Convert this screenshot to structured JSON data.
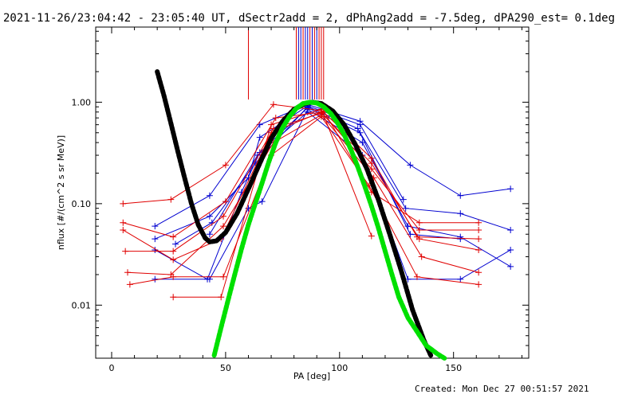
{
  "header": {
    "title": "2021-11-26/23:04:42 - 23:05:40 UT, dSectr2add = 2, dPhAng2add = -7.5deg, dPA290_est=  0.1deg"
  },
  "footer": {
    "created": "Created: Mon Dec 27 00:51:57 2021"
  },
  "colors": {
    "red": "#e00000",
    "blue": "#0000d0",
    "black": "#000000",
    "green": "#00e000"
  },
  "chart_data": {
    "type": "scatter",
    "xlabel": "PA [deg]",
    "ylabel": "nflux [#/(cm^2 s sr MeV)]",
    "xlim": [
      -7,
      183
    ],
    "ylim": [
      0.003,
      5.5
    ],
    "yscale": "log",
    "grid": false,
    "x_ticks": [
      0,
      50,
      100,
      150
    ],
    "y_ticks": [
      1.0,
      0.1,
      0.01
    ],
    "x_tick_labels": [
      "0",
      "50",
      "100",
      "150"
    ],
    "y_tick_labels": [
      "1.00",
      "0.10",
      "0.01"
    ],
    "top_markers": {
      "red": [
        60,
        81,
        84,
        87,
        89,
        91,
        92,
        93
      ],
      "blue": [
        82,
        83,
        85,
        86,
        88,
        90
      ]
    },
    "series": [
      {
        "color": "blue",
        "points": [
          [
            19,
            0.06
          ],
          [
            43,
            0.12
          ],
          [
            65,
            0.6
          ],
          [
            86,
            0.95
          ],
          [
            109,
            0.65
          ],
          [
            131,
            0.24
          ],
          [
            153,
            0.12
          ],
          [
            175,
            0.14
          ]
        ]
      },
      {
        "color": "blue",
        "points": [
          [
            19,
            0.045
          ],
          [
            43,
            0.075
          ],
          [
            60,
            0.18
          ],
          [
            65,
            0.45
          ],
          [
            86,
            0.92
          ],
          [
            109,
            0.6
          ],
          [
            128,
            0.11
          ]
        ]
      },
      {
        "color": "blue",
        "points": [
          [
            19,
            0.035
          ],
          [
            42,
            0.018
          ],
          [
            57,
            0.13
          ],
          [
            65,
            0.32
          ],
          [
            86,
            0.88
          ],
          [
            109,
            0.5
          ],
          [
            129,
            0.09
          ],
          [
            153,
            0.08
          ],
          [
            175,
            0.055
          ]
        ]
      },
      {
        "color": "blue",
        "points": [
          [
            19,
            0.018
          ],
          [
            43,
            0.018
          ],
          [
            60,
            0.09
          ],
          [
            66,
            0.105
          ],
          [
            86,
            0.85
          ],
          [
            110,
            0.4
          ],
          [
            130,
            0.06
          ],
          [
            153,
            0.047
          ],
          [
            175,
            0.024
          ]
        ]
      },
      {
        "color": "blue",
        "points": [
          [
            43,
            0.05
          ],
          [
            64,
            0.3
          ],
          [
            86,
            0.8
          ],
          [
            110,
            0.3
          ],
          [
            130,
            0.018
          ],
          [
            153,
            0.018
          ],
          [
            175,
            0.035
          ]
        ]
      },
      {
        "color": "blue",
        "points": [
          [
            28,
            0.04
          ],
          [
            44,
            0.065
          ],
          [
            63,
            0.25
          ],
          [
            86,
            0.9
          ],
          [
            108,
            0.55
          ],
          [
            131,
            0.05
          ],
          [
            153,
            0.045
          ]
        ]
      },
      {
        "color": "red",
        "points": [
          [
            5,
            0.1
          ],
          [
            26,
            0.11
          ],
          [
            50,
            0.24
          ],
          [
            71,
            0.95
          ],
          [
            93,
            0.82
          ],
          [
            114,
            0.13
          ],
          [
            135,
            0.065
          ],
          [
            161,
            0.065
          ]
        ]
      },
      {
        "color": "red",
        "points": [
          [
            5,
            0.065
          ],
          [
            27,
            0.047
          ],
          [
            50,
            0.105
          ],
          [
            72,
            0.7
          ],
          [
            93,
            0.8
          ],
          [
            114,
            0.28
          ],
          [
            134,
            0.047
          ],
          [
            161,
            0.045
          ]
        ]
      },
      {
        "color": "red",
        "points": [
          [
            6,
            0.034
          ],
          [
            27,
            0.034
          ],
          [
            49,
            0.075
          ],
          [
            71,
            0.55
          ],
          [
            92,
            0.78
          ],
          [
            114,
            0.25
          ],
          [
            135,
            0.045
          ],
          [
            161,
            0.035
          ]
        ]
      },
      {
        "color": "red",
        "points": [
          [
            7,
            0.021
          ],
          [
            26,
            0.02
          ],
          [
            49,
            0.06
          ],
          [
            71,
            0.4
          ],
          [
            92,
            0.75
          ],
          [
            115,
            0.18
          ],
          [
            136,
            0.03
          ],
          [
            161,
            0.021
          ]
        ]
      },
      {
        "color": "red",
        "points": [
          [
            8,
            0.016
          ],
          [
            27,
            0.019
          ],
          [
            49,
            0.019
          ],
          [
            70,
            0.3
          ],
          [
            92,
            0.72
          ],
          [
            113,
            0.15
          ],
          [
            134,
            0.019
          ],
          [
            161,
            0.016
          ]
        ]
      },
      {
        "color": "red",
        "points": [
          [
            27,
            0.012
          ],
          [
            48,
            0.012
          ],
          [
            70,
            0.6
          ],
          [
            92,
            0.85
          ],
          [
            114,
            0.048
          ]
        ]
      },
      {
        "color": "red",
        "points": [
          [
            5,
            0.055
          ],
          [
            27,
            0.028
          ],
          [
            48,
            0.045
          ],
          [
            70,
            0.5
          ],
          [
            92,
            0.8
          ],
          [
            114,
            0.22
          ],
          [
            135,
            0.055
          ],
          [
            161,
            0.055
          ]
        ]
      }
    ],
    "fits": [
      {
        "color": "black",
        "points": [
          [
            20,
            2.0
          ],
          [
            23,
            1.15
          ],
          [
            26,
            0.62
          ],
          [
            29,
            0.33
          ],
          [
            32,
            0.18
          ],
          [
            35,
            0.1
          ],
          [
            38,
            0.062
          ],
          [
            41,
            0.046
          ],
          [
            43,
            0.042
          ],
          [
            46,
            0.043
          ],
          [
            50,
            0.052
          ],
          [
            55,
            0.08
          ],
          [
            60,
            0.14
          ],
          [
            65,
            0.25
          ],
          [
            70,
            0.44
          ],
          [
            75,
            0.65
          ],
          [
            80,
            0.85
          ],
          [
            85,
            0.97
          ],
          [
            88,
            1.0
          ],
          [
            92,
            0.97
          ],
          [
            97,
            0.82
          ],
          [
            102,
            0.6
          ],
          [
            107,
            0.38
          ],
          [
            112,
            0.22
          ],
          [
            117,
            0.11
          ],
          [
            122,
            0.05
          ],
          [
            127,
            0.022
          ],
          [
            132,
            0.009
          ],
          [
            137,
            0.0045
          ],
          [
            140,
            0.0032
          ]
        ]
      },
      {
        "color": "green",
        "points": [
          [
            45,
            0.0032
          ],
          [
            48,
            0.006
          ],
          [
            51,
            0.011
          ],
          [
            54,
            0.02
          ],
          [
            57,
            0.036
          ],
          [
            60,
            0.062
          ],
          [
            63,
            0.1
          ],
          [
            66,
            0.16
          ],
          [
            69,
            0.26
          ],
          [
            72,
            0.4
          ],
          [
            75,
            0.56
          ],
          [
            78,
            0.72
          ],
          [
            81,
            0.87
          ],
          [
            84,
            0.97
          ],
          [
            87,
            1.0
          ],
          [
            90,
            0.98
          ],
          [
            93,
            0.9
          ],
          [
            96,
            0.78
          ],
          [
            99,
            0.63
          ],
          [
            102,
            0.48
          ],
          [
            105,
            0.34
          ],
          [
            108,
            0.23
          ],
          [
            111,
            0.15
          ],
          [
            114,
            0.095
          ],
          [
            117,
            0.058
          ],
          [
            120,
            0.034
          ],
          [
            123,
            0.02
          ],
          [
            126,
            0.012
          ],
          [
            130,
            0.0075
          ],
          [
            134,
            0.0055
          ],
          [
            138,
            0.004
          ],
          [
            143,
            0.0033
          ],
          [
            146,
            0.003
          ]
        ]
      }
    ]
  }
}
